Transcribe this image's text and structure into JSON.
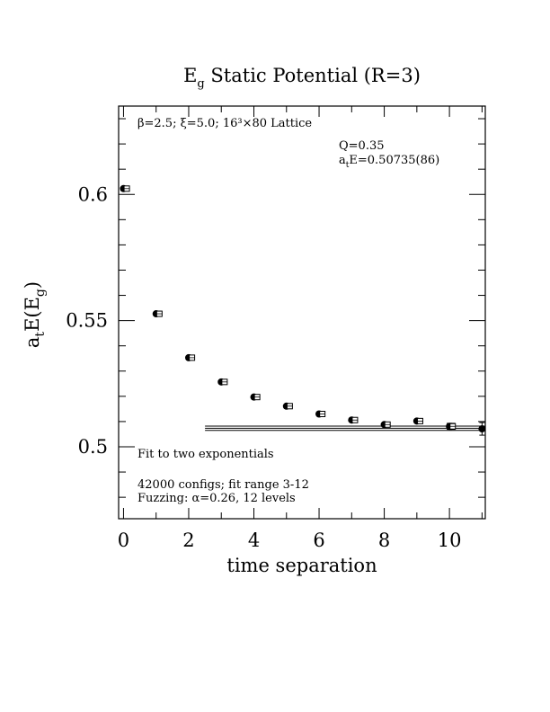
{
  "chart_data": {
    "type": "scatter",
    "title": {
      "main": "E",
      "sub": "g",
      "rest": " Static Potential (R=3)"
    },
    "xlabel": "time separation",
    "ylabel": {
      "pre": "a",
      "sub1": "t",
      "mid": "E(E",
      "sub2": "g",
      "post": ")"
    },
    "xlim": [
      -0.15,
      11.1
    ],
    "ylim": [
      0.4715,
      0.635
    ],
    "xticks": [
      0,
      2,
      4,
      6,
      8,
      10
    ],
    "xtick_labels": [
      "0",
      "2",
      "4",
      "6",
      "8",
      "10"
    ],
    "yticks": [
      0.5,
      0.55,
      0.6
    ],
    "ytick_labels": [
      "0.5",
      "0.55",
      "0.6"
    ],
    "series": [
      {
        "marker": "filled-circle",
        "x": [
          0,
          1,
          2,
          3,
          4,
          5,
          6,
          7,
          8,
          9,
          10,
          11
        ],
        "y": [
          0.6023,
          0.5527,
          0.5353,
          0.5257,
          0.5197,
          0.5161,
          0.513,
          0.5106,
          0.5088,
          0.5102,
          0.5081,
          0.5071
        ],
        "err": [
          0.0003,
          0.0004,
          0.0004,
          0.0004,
          0.0004,
          0.0004,
          0.0004,
          0.0004,
          0.0005,
          0.0006,
          0.0012,
          0.0025
        ]
      },
      {
        "marker": "open-square",
        "x": [
          0.1,
          1.1,
          2.1,
          3.1,
          4.1,
          5.1,
          6.1,
          7.1,
          8.1,
          9.1,
          10.1
        ],
        "y": [
          0.6023,
          0.5527,
          0.5353,
          0.5257,
          0.5197,
          0.5161,
          0.513,
          0.5106,
          0.5088,
          0.5102,
          0.5081
        ],
        "err": [
          0.0003,
          0.0004,
          0.0004,
          0.0004,
          0.0004,
          0.0004,
          0.0004,
          0.0004,
          0.0005,
          0.0006,
          0.0012
        ]
      }
    ],
    "fit": {
      "value": 0.50735,
      "err": 0.00086,
      "x_start": 2.5,
      "x_end": 11.1
    },
    "annotations": {
      "lattice": "β=2.5; ξ=5.0; 16³×80 Lattice",
      "q": "Q=0.35",
      "energy_pre": "a",
      "energy_sub": "t",
      "energy_post": "E=0.50735(86)",
      "fit_desc": "Fit to two exponentials",
      "configs": "42000 configs; fit range 3-12",
      "fuzzing": "Fuzzing: α=0.26, 12 levels"
    }
  }
}
